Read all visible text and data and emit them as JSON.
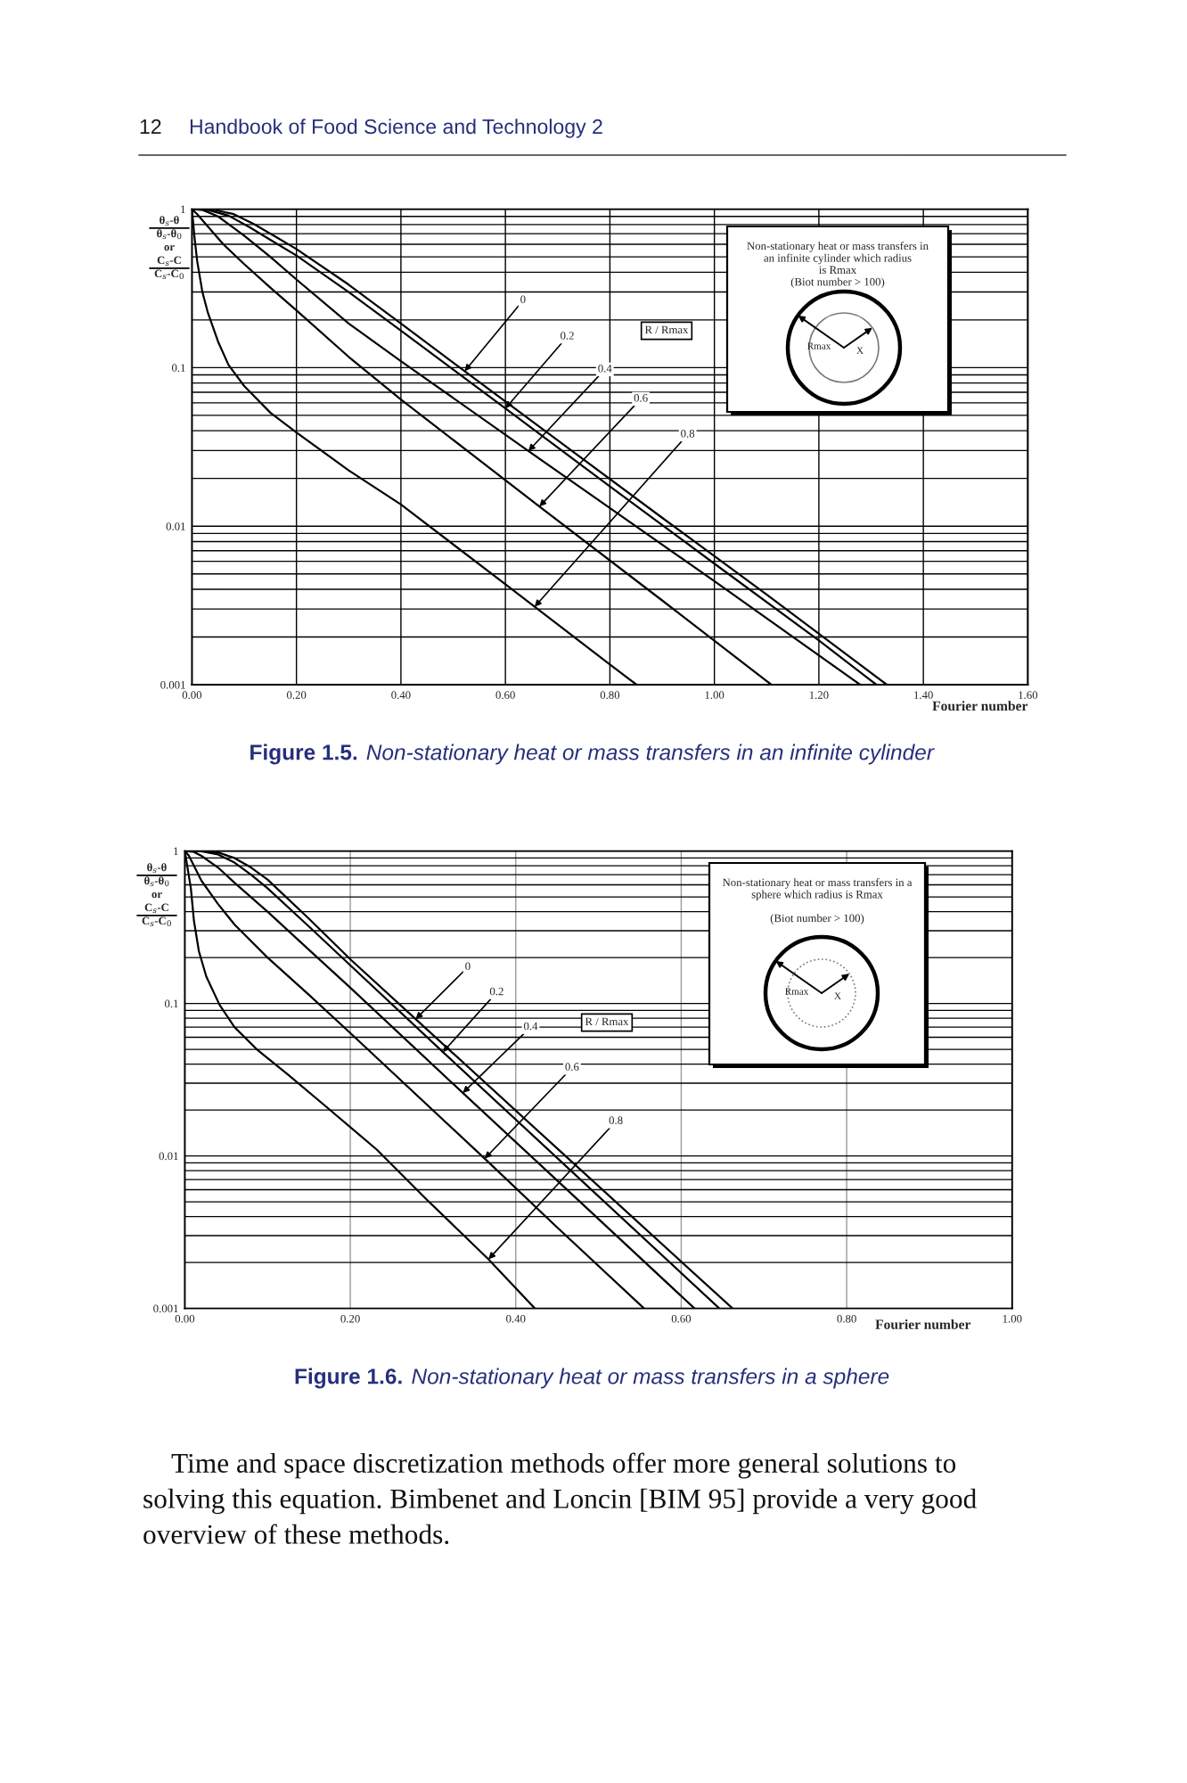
{
  "chart_data": [
    {
      "type": "line",
      "xlabel": "Fourier number",
      "ylabel": "θ$_{s}$-θ\nθ$_{s}$-θ$_{0}$\nor\nC$_{s}$-C\nC$_{s}$-C$_{0}$",
      "log": "y",
      "grid": true,
      "xlim": [
        0,
        1.6
      ],
      "xticks": [
        {
          "value": 0,
          "label": "0.00"
        },
        {
          "value": 0.2,
          "label": "0.20"
        },
        {
          "value": 0.4,
          "label": "0.40"
        },
        {
          "value": 0.6,
          "label": "0.60"
        },
        {
          "value": 0.8,
          "label": "0.80"
        },
        {
          "value": 1.0,
          "label": "1.00"
        },
        {
          "value": 1.2,
          "label": "1.20"
        },
        {
          "value": 1.4,
          "label": "1.40"
        },
        {
          "value": 1.6,
          "label": "1.60"
        }
      ],
      "ylim": [
        0.001,
        1
      ],
      "yticks": [
        1,
        0.1,
        0.01,
        0.001
      ],
      "series": [
        {
          "color": "#000000",
          "x": [
            0,
            0.04,
            0.08,
            0.12,
            0.16,
            0.2,
            0.3,
            0.4,
            0.522,
            0.7,
            0.9,
            1.1,
            1.33
          ],
          "values": [
            1,
            0.995,
            0.93,
            0.8,
            0.67,
            0.56,
            0.334,
            0.19,
            0.095,
            0.0348,
            0.0113,
            0.0037,
            0.001
          ]
        },
        {
          "color": "#000000",
          "x": [
            0,
            0.03,
            0.07,
            0.11,
            0.15,
            0.2,
            0.3,
            0.4,
            0.6,
            0.8,
            1.0,
            1.2,
            1.31
          ],
          "values": [
            1,
            0.99,
            0.91,
            0.77,
            0.64,
            0.51,
            0.3,
            0.171,
            0.0553,
            0.0178,
            0.0058,
            0.0019,
            0.001
          ]
        },
        {
          "color": "#000000",
          "x": [
            0,
            0.02,
            0.05,
            0.1,
            0.15,
            0.2,
            0.3,
            0.4,
            0.644,
            0.8,
            1.0,
            1.279
          ],
          "values": [
            1,
            0.99,
            0.9,
            0.68,
            0.5,
            0.36,
            0.19,
            0.11,
            0.0298,
            0.013,
            0.0045,
            0.001
          ]
        },
        {
          "color": "#000000",
          "x": [
            0,
            0.01,
            0.03,
            0.06,
            0.1,
            0.15,
            0.2,
            0.3,
            0.4,
            0.665,
            0.9,
            1.109
          ],
          "values": [
            1,
            0.93,
            0.78,
            0.6,
            0.45,
            0.32,
            0.23,
            0.117,
            0.063,
            0.0133,
            0.0034,
            0.001
          ]
        },
        {
          "color": "#000000",
          "x": [
            0,
            0.005,
            0.01,
            0.02,
            0.03,
            0.05,
            0.07,
            0.1,
            0.15,
            0.2,
            0.3,
            0.4,
            0.6,
            0.8,
            0.851
          ],
          "values": [
            1,
            0.66,
            0.47,
            0.3,
            0.225,
            0.146,
            0.104,
            0.0766,
            0.052,
            0.039,
            0.0225,
            0.0137,
            0.0043,
            0.00134,
            0.001
          ]
        }
      ],
      "annotations": [
        "12",
        "Handbook of Food Science and Technology 2",
        "Non-stationary heat or mass transfers in\nan infinite cylinder which radius\nis Rmax\n(Biot number > 100)",
        "Rmax",
        "X",
        "R / Rmax",
        {
          "text": "0",
          "x": 0.522,
          "y": 0.095
        },
        {
          "text": "0.2",
          "x": 0.6,
          "y": 0.0553
        },
        {
          "text": "0.4",
          "x": 0.644,
          "y": 0.0298
        },
        {
          "text": "0.6",
          "x": 0.665,
          "y": 0.0133
        },
        {
          "text": "0.8",
          "x": 0.656,
          "y": 0.0031
        },
        "Figure 1.5.",
        "Non-stationary heat or mass transfers in an infinite cylinder"
      ]
    },
    {
      "type": "line",
      "xlabel": "Fourier number",
      "ylabel": "θ$_{s}$-θ\nθ$_{s}$-θ$_{0}$\nor\nC$_{s}$-C\nC$_{s}$-C$_{0}$",
      "log": "y",
      "grid": true,
      "xlim": [
        0,
        1.0
      ],
      "xticks": [
        {
          "value": 0,
          "label": "0.00"
        },
        {
          "value": 0.2,
          "label": "0.20"
        },
        {
          "value": 0.4,
          "label": "0.40"
        },
        {
          "value": 0.6,
          "label": "0.60"
        },
        {
          "value": 0.8,
          "label": "0.80"
        },
        {
          "value": 1.0,
          "label": "1.00"
        }
      ],
      "ylim": [
        0.001,
        1
      ],
      "yticks": [
        1,
        0.1,
        0.01,
        0.001
      ],
      "series": [
        {
          "color": "#000000",
          "x": [
            0,
            0.02,
            0.04,
            0.06,
            0.08,
            0.1,
            0.15,
            0.2,
            0.279,
            0.45,
            0.662
          ],
          "values": [
            1,
            1,
            0.98,
            0.9,
            0.78,
            0.65,
            0.36,
            0.195,
            0.079,
            0.0112,
            0.001
          ]
        },
        {
          "color": "#000000",
          "x": [
            0,
            0.02,
            0.04,
            0.06,
            0.08,
            0.1,
            0.15,
            0.2,
            0.312,
            0.45,
            0.646
          ],
          "values": [
            1,
            0.995,
            0.95,
            0.84,
            0.7,
            0.57,
            0.32,
            0.178,
            0.048,
            0.0097,
            0.001
          ]
        },
        {
          "color": "#000000",
          "x": [
            0,
            0.01,
            0.02,
            0.04,
            0.06,
            0.1,
            0.15,
            0.2,
            0.336,
            0.45,
            0.616
          ],
          "values": [
            1,
            0.99,
            0.93,
            0.78,
            0.62,
            0.4,
            0.225,
            0.127,
            0.0259,
            0.0069,
            0.001
          ]
        },
        {
          "color": "#000000",
          "x": [
            0,
            0.005,
            0.01,
            0.02,
            0.04,
            0.06,
            0.1,
            0.15,
            0.2,
            0.3625,
            0.45,
            0.555
          ],
          "values": [
            1,
            0.93,
            0.82,
            0.64,
            0.45,
            0.33,
            0.2,
            0.114,
            0.064,
            0.0096,
            0.0034,
            0.001
          ]
        },
        {
          "color": "#000000",
          "x": [
            0,
            0.0073,
            0.011,
            0.017,
            0.026,
            0.042,
            0.06,
            0.087,
            0.125,
            0.171,
            0.232,
            0.292,
            0.367,
            0.423
          ],
          "values": [
            1,
            0.57,
            0.35,
            0.22,
            0.15,
            0.098,
            0.07,
            0.05,
            0.034,
            0.021,
            0.011,
            0.0052,
            0.0021,
            0.001
          ]
        }
      ],
      "annotations": [
        "Non-stationary heat or mass transfers in a\nsphere which radius is Rmax\n\n(Biot number > 100)",
        "Rmax",
        "X",
        "R / Rmax",
        {
          "text": "0",
          "x": 0.279,
          "y": 0.079
        },
        {
          "text": "0.2",
          "x": 0.312,
          "y": 0.048
        },
        {
          "text": "0.4",
          "x": 0.336,
          "y": 0.0259
        },
        {
          "text": "0.6",
          "x": 0.3625,
          "y": 0.0096
        },
        {
          "text": "0.8",
          "x": 0.367,
          "y": 0.0021
        },
        "Figure 1.6.",
        "Non-stationary heat or mass transfers in a sphere",
        "Time and space discretization methods offer more general solutions to\nsolving this equation. Bimbenet and Loncin [BIM 95] provide a very good\noverview of these methods."
      ]
    }
  ]
}
